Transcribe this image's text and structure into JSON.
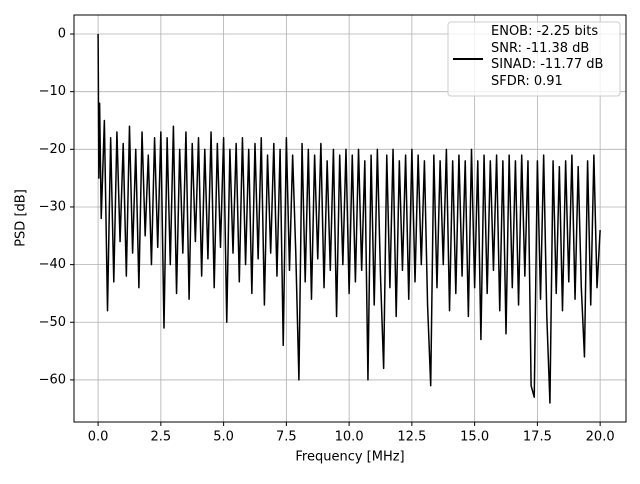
{
  "chart_data": {
    "type": "line",
    "xlabel": "Frequency [MHz]",
    "ylabel": "PSD [dB]",
    "xlim": [
      -0.96,
      21.03
    ],
    "ylim": [
      -67.3,
      3.3
    ],
    "xticks": [
      {
        "value": 0,
        "label": "0.0"
      },
      {
        "value": 2.5,
        "label": "2.5"
      },
      {
        "value": 5,
        "label": "5.0"
      },
      {
        "value": 7.5,
        "label": "7.5"
      },
      {
        "value": 10,
        "label": "10.0"
      },
      {
        "value": 12.5,
        "label": "12.5"
      },
      {
        "value": 15,
        "label": "15.0"
      },
      {
        "value": 17.5,
        "label": "17.5"
      },
      {
        "value": 20,
        "label": "20.0"
      }
    ],
    "yticks": [
      0,
      {
        "value": -10,
        "label": "−10"
      },
      {
        "value": -20,
        "label": "−20"
      },
      {
        "value": -30,
        "label": "−30"
      },
      {
        "value": -40,
        "label": "−40"
      },
      {
        "value": -50,
        "label": "−50"
      },
      {
        "value": -60,
        "label": "−60"
      }
    ],
    "grid": true,
    "legend": "upper right",
    "x": [
      0,
      0.03,
      0.06,
      0.125,
      0.25,
      0.375,
      0.5,
      0.625,
      0.75,
      0.875,
      1,
      1.125,
      1.25,
      1.375,
      1.5,
      1.625,
      1.75,
      1.875,
      2,
      2.125,
      2.25,
      2.375,
      2.5,
      2.625,
      2.75,
      2.875,
      3,
      3.125,
      3.25,
      3.375,
      3.5,
      3.625,
      3.75,
      3.875,
      4,
      4.125,
      4.25,
      4.375,
      4.5,
      4.625,
      4.75,
      4.875,
      5,
      5.125,
      5.25,
      5.375,
      5.5,
      5.625,
      5.75,
      5.875,
      6,
      6.125,
      6.25,
      6.375,
      6.5,
      6.625,
      6.75,
      6.875,
      7,
      7.125,
      7.25,
      7.375,
      7.5,
      7.625,
      7.75,
      7.875,
      8,
      8.125,
      8.25,
      8.375,
      8.5,
      8.625,
      8.75,
      8.875,
      9,
      9.125,
      9.25,
      9.375,
      9.5,
      9.625,
      9.75,
      9.875,
      10,
      10.125,
      10.25,
      10.375,
      10.5,
      10.625,
      10.75,
      10.875,
      11,
      11.125,
      11.25,
      11.375,
      11.5,
      11.625,
      11.75,
      11.875,
      12,
      12.125,
      12.25,
      12.375,
      12.5,
      12.625,
      12.75,
      12.875,
      13,
      13.125,
      13.25,
      13.375,
      13.5,
      13.625,
      13.75,
      13.875,
      14,
      14.125,
      14.25,
      14.375,
      14.5,
      14.625,
      14.75,
      14.875,
      15,
      15.125,
      15.25,
      15.375,
      15.5,
      15.625,
      15.75,
      15.875,
      16,
      16.125,
      16.25,
      16.375,
      16.5,
      16.625,
      16.75,
      16.875,
      17,
      17.125,
      17.25,
      17.375,
      17.5,
      17.625,
      17.75,
      17.875,
      18,
      18.125,
      18.25,
      18.375,
      18.5,
      18.625,
      18.75,
      18.875,
      19,
      19.125,
      19.25,
      19.375,
      19.5,
      19.625,
      19.75,
      19.875,
      20
    ],
    "series": [
      {
        "name": "ENOB: -2.25 bits\nSNR: -11.38 dB\nSINAD: -11.77 dB\nSFDR: 0.91",
        "color": "#000000",
        "values": [
          0,
          -25,
          -12,
          -32,
          -15,
          -48,
          -18,
          -43,
          -17,
          -36,
          -19,
          -42,
          -16,
          -38,
          -20,
          -44,
          -17,
          -35,
          -21,
          -40,
          -18,
          -37,
          -17,
          -51,
          -18,
          -40,
          -16,
          -45,
          -20,
          -38,
          -17,
          -46,
          -19,
          -36,
          -18,
          -42,
          -20,
          -39,
          -17,
          -44,
          -19,
          -37,
          -18,
          -50,
          -20,
          -38,
          -19,
          -43,
          -18,
          -40,
          -20,
          -45,
          -19,
          -39,
          -18,
          -47,
          -21,
          -38,
          -19,
          -42,
          -20,
          -54,
          -18,
          -41,
          -21,
          -38,
          -60,
          -19,
          -43,
          -20,
          -46,
          -21,
          -39,
          -19,
          -44,
          -22,
          -41,
          -20,
          -49,
          -21,
          -40,
          -20,
          -45,
          -21,
          -43,
          -20,
          -41,
          -22,
          -60,
          -21,
          -47,
          -20,
          -42,
          -58,
          -21,
          -44,
          -20,
          -49,
          -22,
          -41,
          -21,
          -46,
          -20,
          -43,
          -21,
          -40,
          -22,
          -47,
          -61,
          -21,
          -44,
          -22,
          -40,
          -20,
          -48,
          -22,
          -45,
          -21,
          -42,
          -22,
          -49,
          -20,
          -44,
          -22,
          -53,
          -21,
          -45,
          -22,
          -41,
          -21,
          -48,
          -22,
          -52,
          -21,
          -44,
          -22,
          -47,
          -21,
          -42,
          -22,
          -61,
          -63,
          -22,
          -46,
          -21,
          -49,
          -64,
          -22,
          -45,
          -23,
          -48,
          -22,
          -43,
          -21,
          -46,
          -23,
          -44,
          -56,
          -22,
          -47,
          -21,
          -44,
          -34
        ]
      }
    ]
  }
}
